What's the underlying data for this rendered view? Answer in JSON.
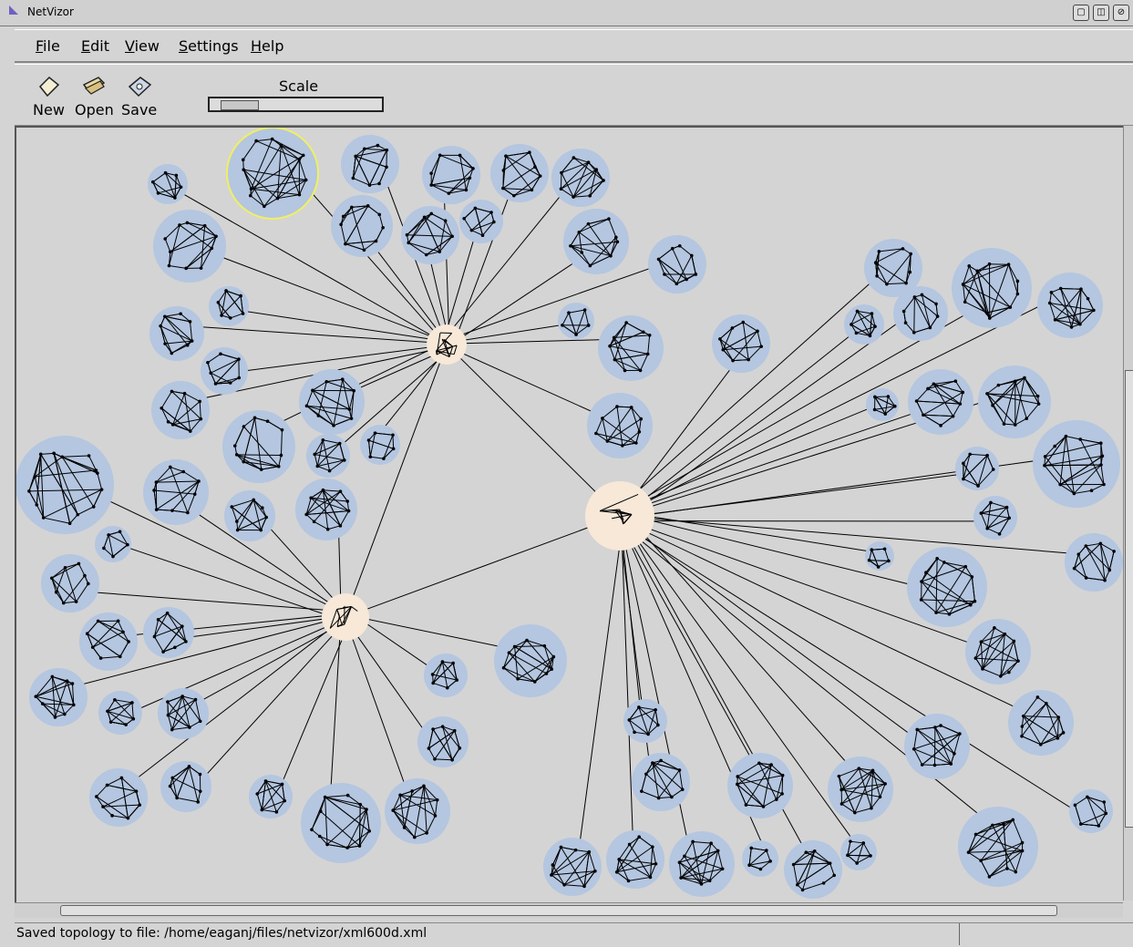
{
  "window": {
    "title": "NetVizor"
  },
  "menu": {
    "file": "File",
    "edit": "Edit",
    "view": "View",
    "settings": "Settings",
    "help": "Help"
  },
  "toolbar": {
    "new_label": "New",
    "open_label": "Open",
    "save_label": "Save",
    "scale_label": "Scale"
  },
  "status": {
    "message": "Saved topology to file: /home/eaganj/files/netvizor/xml600d.xml"
  },
  "colors": {
    "cluster_fill": "#b4c6e0",
    "hub_fill": "#f7e8d8",
    "selected_ring": "#f0f060",
    "edge": "#000000",
    "canvas_bg": "#d4d4d4"
  },
  "icons": [
    "new-document-icon",
    "open-folder-icon",
    "save-disk-icon"
  ]
}
